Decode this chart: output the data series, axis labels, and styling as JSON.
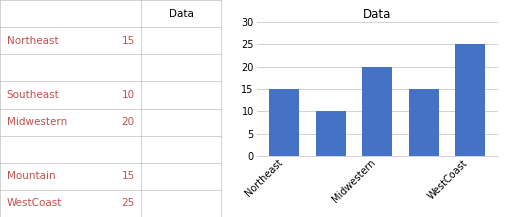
{
  "table_header": "Data",
  "row_labels": [
    "",
    "Northeast",
    "",
    "Southeast",
    "Midwestern",
    "",
    "Mountain",
    "WestCoast"
  ],
  "row_vals": [
    "",
    "15",
    "",
    "10",
    "20",
    "",
    "15",
    "25"
  ],
  "chart_title": "Data",
  "bar_color": "#4472C4",
  "bar_values": [
    15,
    10,
    20,
    15,
    25
  ],
  "x_tick_labels": [
    "Northeast",
    "Midwestern",
    "WestCoast"
  ],
  "x_tick_positions": [
    0,
    2,
    4
  ],
  "ylim": [
    0,
    30
  ],
  "yticks": [
    0,
    5,
    10,
    15,
    20,
    25,
    30
  ],
  "label_color": "#C0504D",
  "table_border_color": "#BFBFBF",
  "bg_color": "#FFFFFF",
  "figsize": [
    5.08,
    2.17
  ],
  "dpi": 100
}
